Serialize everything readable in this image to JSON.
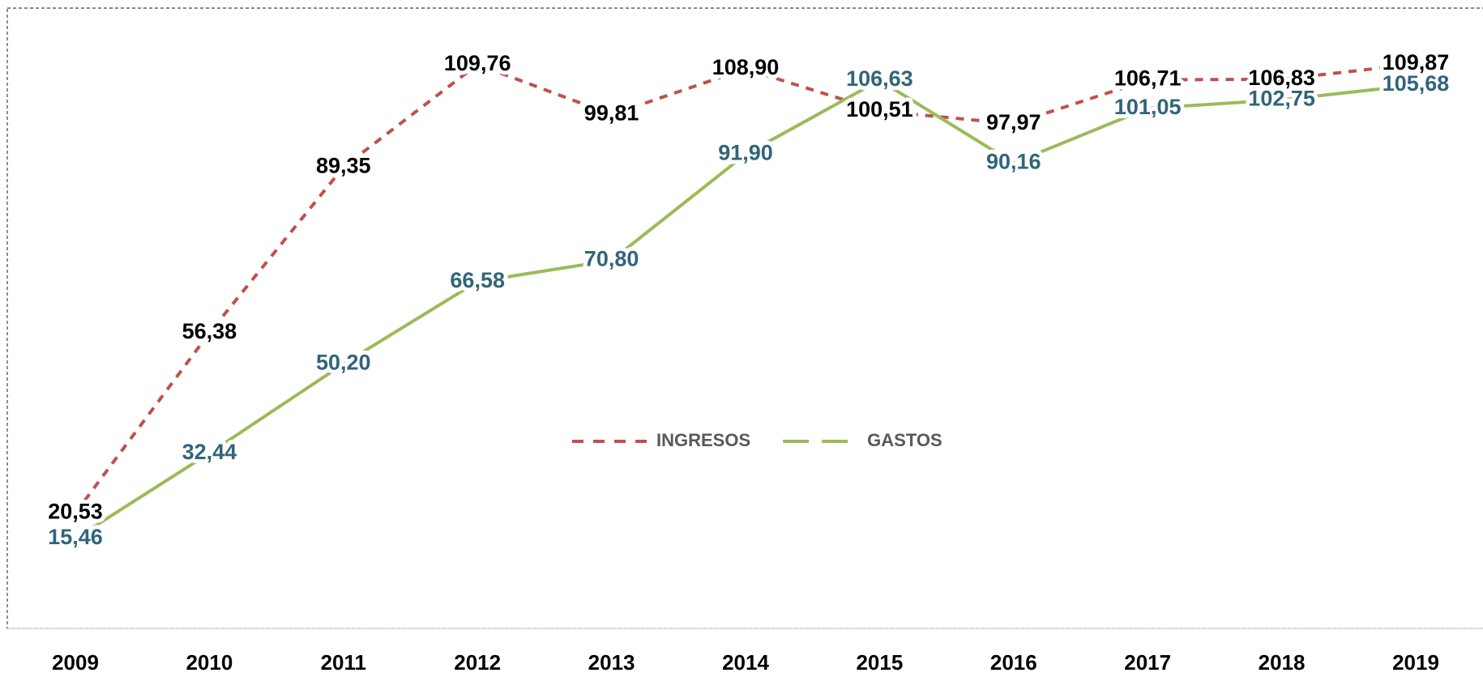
{
  "chart_data": {
    "type": "line",
    "categories": [
      "2009",
      "2010",
      "2011",
      "2012",
      "2013",
      "2014",
      "2015",
      "2016",
      "2017",
      "2018",
      "2019"
    ],
    "series": [
      {
        "name": "INGRESOS",
        "color": "#c0504d",
        "label_color": "#000000",
        "dashed": true,
        "values": [
          20.53,
          56.38,
          89.35,
          109.76,
          99.81,
          108.9,
          100.51,
          97.97,
          106.71,
          106.83,
          109.87
        ],
        "value_labels": [
          "20,53",
          "56,38",
          "89,35",
          "109,76",
          "99,81",
          "108,90",
          "100,51",
          "97,97",
          "106,71",
          "106,83",
          "109,87"
        ]
      },
      {
        "name": "GASTOS",
        "color": "#9bbb59",
        "label_color": "#31657a",
        "dashed": false,
        "values": [
          15.46,
          32.44,
          50.2,
          66.58,
          70.8,
          91.9,
          106.63,
          90.16,
          101.05,
          102.75,
          105.68
        ],
        "value_labels": [
          "15,46",
          "32,44",
          "50,20",
          "66,58",
          "70,80",
          "91,90",
          "106,63",
          "90,16",
          "101,05",
          "102,75",
          "105,68"
        ]
      }
    ],
    "legend": "center"
  }
}
